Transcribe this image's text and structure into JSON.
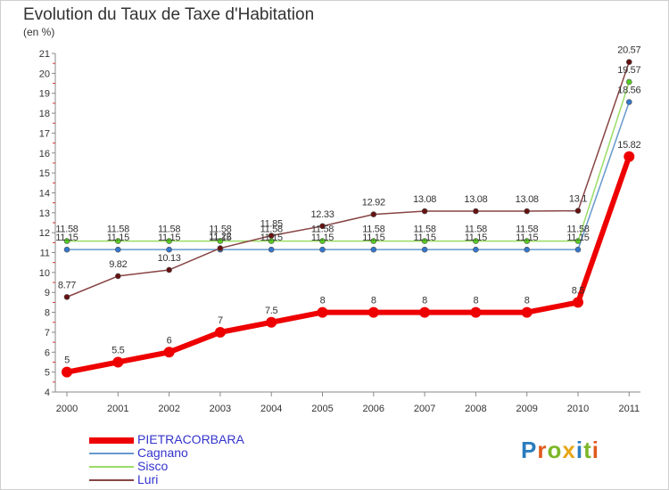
{
  "header": {
    "title": "Evolution du Taux de Taxe d'Habitation",
    "unit": "(en %)"
  },
  "logo": {
    "text": "Proxiti",
    "colors": [
      "#2a7dbf",
      "#e05a1c",
      "#7cb728",
      "#e8a617",
      "#2a7dbf",
      "#7cb728",
      "#e05a1c"
    ]
  },
  "chart_data": {
    "type": "line",
    "title": "Evolution du Taux de Taxe d'Habitation",
    "ylabel": "(en %)",
    "xlabel": "",
    "x": [
      "2000",
      "2001",
      "2002",
      "2003",
      "2004",
      "2005",
      "2006",
      "2007",
      "2008",
      "2009",
      "2010",
      "2011"
    ],
    "ylim": [
      4,
      21
    ],
    "yticks": [
      4,
      5,
      6,
      7,
      8,
      9,
      10,
      11,
      12,
      13,
      14,
      15,
      16,
      17,
      18,
      19,
      20,
      21
    ],
    "grid": false,
    "legend_position": "bottom-left",
    "series": [
      {
        "name": "PIETRACORBARA",
        "color": "#ee0000",
        "point_color": "#ee0000",
        "width": 6,
        "marker": 6,
        "values": [
          5,
          5.5,
          6,
          7,
          7.5,
          8,
          8,
          8,
          8,
          8,
          8.5,
          15.82
        ],
        "labels": [
          "5",
          "5.5",
          "6",
          "7",
          "7.5",
          "8",
          "8",
          "8",
          "8",
          "8",
          "8.5",
          "15.82"
        ]
      },
      {
        "name": "Cagnano",
        "color": "#6699cc",
        "point_color": "#3377cc",
        "width": 1.5,
        "marker": 3,
        "values": [
          11.15,
          11.15,
          11.15,
          11.15,
          11.15,
          11.15,
          11.15,
          11.15,
          11.15,
          11.15,
          11.15,
          18.56
        ],
        "labels": [
          "11.15",
          "11.15",
          "11.15",
          "11.15",
          "11.15",
          "11.15",
          "11.15",
          "11.15",
          "11.15",
          "11.15",
          "11.15",
          "18.56"
        ]
      },
      {
        "name": "Sisco",
        "color": "#99dd66",
        "point_color": "#55cc22",
        "width": 1.5,
        "marker": 3,
        "values": [
          11.58,
          11.58,
          11.58,
          11.58,
          11.58,
          11.58,
          11.58,
          11.58,
          11.58,
          11.58,
          11.58,
          19.57
        ],
        "labels": [
          "11.58",
          "11.58",
          "11.58",
          "11.58",
          "11.58",
          "11.58",
          "11.58",
          "11.58",
          "11.58",
          "11.58",
          "11.58",
          "19.57"
        ]
      },
      {
        "name": "Luri",
        "color": "#884444",
        "point_color": "#661111",
        "width": 1.5,
        "marker": 3,
        "values": [
          8.77,
          9.82,
          10.13,
          11.22,
          11.85,
          12.33,
          12.92,
          13.08,
          13.08,
          13.08,
          13.1,
          20.57
        ],
        "labels": [
          "8.77",
          "9.82",
          "10.13",
          "11.22",
          "11.85",
          "12.33",
          "12.92",
          "13.08",
          "13.08",
          "13.08",
          "13.1",
          "20.57"
        ]
      }
    ]
  }
}
